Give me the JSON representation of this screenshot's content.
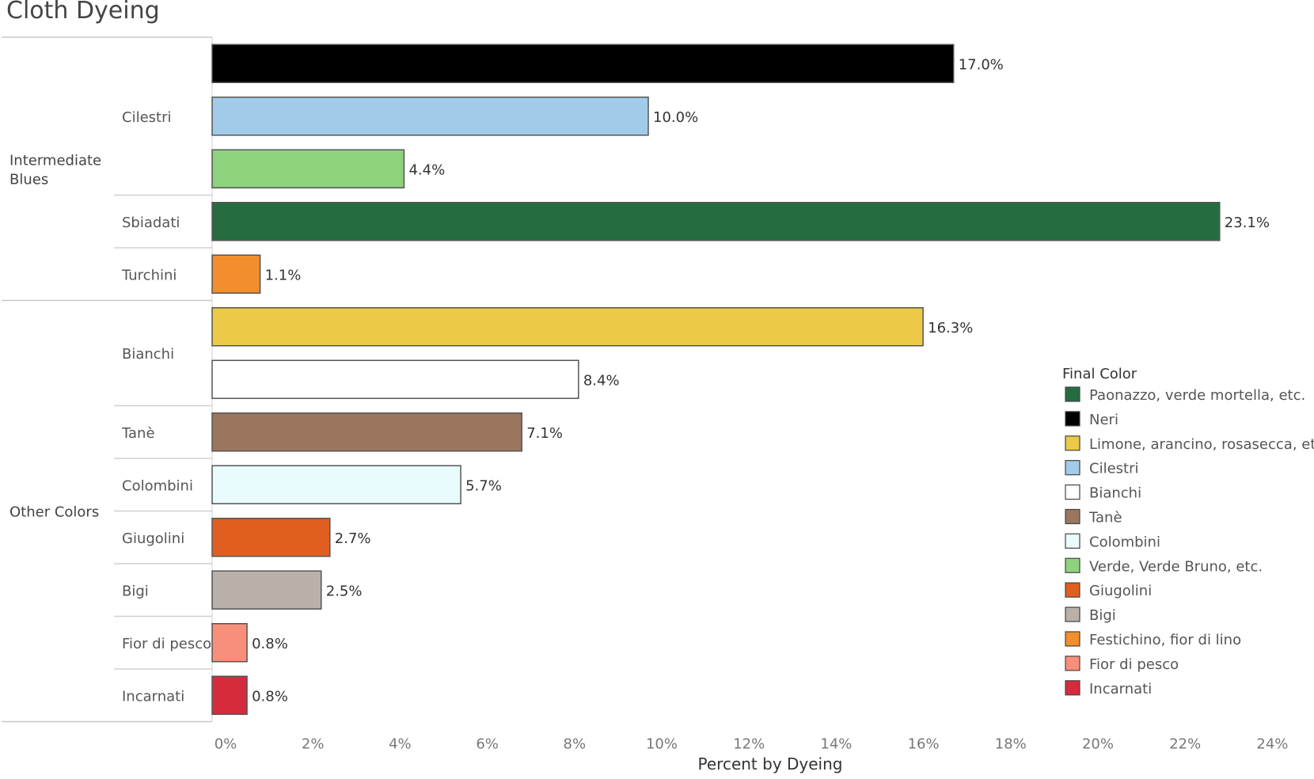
{
  "chart_data": {
    "type": "bar",
    "title": "Cloth Dyeing",
    "xlabel": "Percent by Dyeing",
    "ylabel": "",
    "xlim": [
      0,
      24
    ],
    "x_ticks": [
      "0%",
      "2%",
      "4%",
      "6%",
      "8%",
      "10%",
      "12%",
      "14%",
      "16%",
      "18%",
      "20%",
      "22%",
      "24%"
    ],
    "grid": false,
    "legend_placement": "right",
    "legend_title": "Final Color",
    "groups": [
      {
        "name": "Intermediate Blues",
        "subgroups": [
          {
            "name": "Cilestri",
            "bars": [
              {
                "final_color": "Neri",
                "value": 17.0,
                "label": "17.0%"
              },
              {
                "final_color": "Cilestri",
                "value": 10.0,
                "label": "10.0%"
              },
              {
                "final_color": "Verde, Verde Bruno, etc.",
                "value": 4.4,
                "label": "4.4%"
              }
            ]
          },
          {
            "name": "Sbiadati",
            "bars": [
              {
                "final_color": "Paonazzo, verde mortella, etc.",
                "value": 23.1,
                "label": "23.1%"
              }
            ]
          },
          {
            "name": "Turchini",
            "bars": [
              {
                "final_color": "Festichino, fior di lino",
                "value": 1.1,
                "label": "1.1%"
              }
            ]
          }
        ]
      },
      {
        "name": "Other Colors",
        "subgroups": [
          {
            "name": "Bianchi",
            "bars": [
              {
                "final_color": "Limone, arancino, rosasecca, etc.",
                "value": 16.3,
                "label": "16.3%"
              },
              {
                "final_color": "Bianchi",
                "value": 8.4,
                "label": "8.4%"
              }
            ]
          },
          {
            "name": "Tanè",
            "bars": [
              {
                "final_color": "Tanè",
                "value": 7.1,
                "label": "7.1%"
              }
            ]
          },
          {
            "name": "Colombini",
            "bars": [
              {
                "final_color": "Colombini",
                "value": 5.7,
                "label": "5.7%"
              }
            ]
          },
          {
            "name": "Giugolini",
            "bars": [
              {
                "final_color": "Giugolini",
                "value": 2.7,
                "label": "2.7%"
              }
            ]
          },
          {
            "name": "Bigi",
            "bars": [
              {
                "final_color": "Bigi",
                "value": 2.5,
                "label": "2.5%"
              }
            ]
          },
          {
            "name": "Fior di pesco",
            "bars": [
              {
                "final_color": "Fior di pesco",
                "value": 0.8,
                "label": "0.8%"
              }
            ]
          },
          {
            "name": "Incarnati",
            "bars": [
              {
                "final_color": "Incarnati",
                "value": 0.8,
                "label": "0.8%"
              }
            ]
          }
        ]
      }
    ],
    "legend": [
      {
        "name": "Paonazzo, verde mortella, etc.",
        "color": "#256d40"
      },
      {
        "name": "Neri",
        "color": "#000000"
      },
      {
        "name": "Limone, arancino, rosasecca, etc.",
        "color": "#ecc946"
      },
      {
        "name": "Cilestri",
        "color": "#a2cbea"
      },
      {
        "name": "Bianchi",
        "color": "#ffffff"
      },
      {
        "name": "Tanè",
        "color": "#9b765e"
      },
      {
        "name": "Colombini",
        "color": "#eafbfe"
      },
      {
        "name": "Verde, Verde Bruno, etc.",
        "color": "#8dd37e"
      },
      {
        "name": "Giugolini",
        "color": "#e05f20"
      },
      {
        "name": "Bigi",
        "color": "#b9b0aa"
      },
      {
        "name": "Festichino, fior di lino",
        "color": "#f28e2d"
      },
      {
        "name": "Fior di pesco",
        "color": "#f88f7b"
      },
      {
        "name": "Incarnati",
        "color": "#d62b3c"
      }
    ]
  }
}
